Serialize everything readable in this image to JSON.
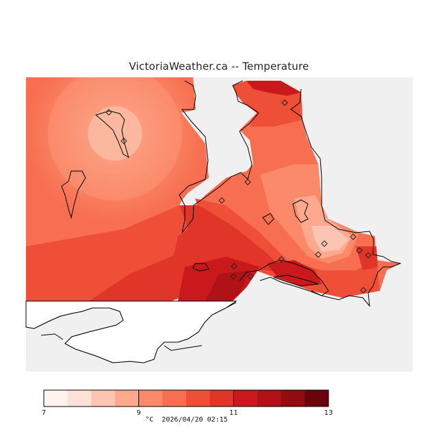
{
  "title": "VictoriaWeather.ca -- Temperature",
  "legend": {
    "unit": "°C",
    "timestamp": "2026/04/20 02:15",
    "min": 7,
    "max": 13,
    "ticks": [
      "7",
      "9",
      "11",
      "13"
    ],
    "colors": [
      "#fff3ee",
      "#fde0d6",
      "#fcc5b3",
      "#fca98f",
      "#fb8a6a",
      "#f76f50",
      "#ef4f36",
      "#e03528",
      "#c9191c",
      "#b11217",
      "#920c11",
      "#6a030b"
    ]
  },
  "map": {
    "land_color": "#f0f0f0",
    "stations": 12
  }
}
